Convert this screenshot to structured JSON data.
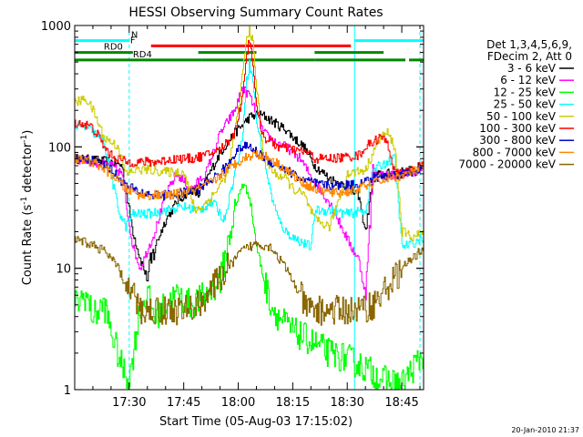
{
  "chart_data": {
    "type": "line",
    "title": "HESSI Observing Summary Count Rates",
    "xlabel": "Start Time (05-Aug-03 17:15:02)",
    "ylabel_main": "Count Rate (s",
    "ylabel_sup1": "-1",
    "ylabel_mid": " detector",
    "ylabel_sup2": "-1",
    "ylabel_end": ")",
    "yscale": "log",
    "ylim": [
      1,
      1000
    ],
    "xlim_minutes": [
      0,
      96
    ],
    "y_ticks": [
      "1",
      "10",
      "100",
      "1000"
    ],
    "x_ticks": [
      "17:30",
      "17:45",
      "18:00",
      "18:15",
      "18:30",
      "18:45"
    ],
    "legend_header": [
      "Det 1,3,4,5,6,9,",
      "FDecim 2, Att 0"
    ],
    "series": [
      {
        "name": "3 - 6 keV",
        "color": "#000000",
        "x": [
          0,
          5,
          10,
          13,
          14,
          16,
          18,
          20,
          22,
          25,
          28,
          32,
          34,
          37,
          40,
          44,
          46,
          48,
          50,
          52,
          54,
          56,
          58,
          60,
          63,
          66,
          70,
          73,
          75,
          78,
          80,
          82,
          86,
          90,
          93,
          96
        ],
        "y": [
          80,
          78,
          75,
          70,
          45,
          20,
          12,
          8,
          15,
          25,
          35,
          45,
          40,
          60,
          90,
          130,
          150,
          175,
          185,
          180,
          165,
          150,
          140,
          120,
          100,
          70,
          55,
          50,
          45,
          40,
          20,
          58,
          60,
          62,
          65,
          70
        ]
      },
      {
        "name": "6 - 12 keV",
        "color": "#ff00ff",
        "x": [
          0,
          5,
          10,
          13,
          14,
          16,
          18,
          22,
          25,
          28,
          32,
          36,
          40,
          44,
          46,
          48,
          50,
          52,
          55,
          58,
          62,
          66,
          70,
          74,
          76,
          78,
          80,
          82,
          86,
          90,
          93,
          96
        ],
        "y": [
          80,
          75,
          70,
          60,
          35,
          15,
          10,
          20,
          40,
          60,
          45,
          60,
          130,
          200,
          300,
          270,
          180,
          130,
          110,
          100,
          80,
          50,
          35,
          20,
          15,
          12,
          6,
          60,
          58,
          60,
          62,
          68
        ]
      },
      {
        "name": "12 - 25 keV",
        "color": "#00ff00",
        "x": [
          0,
          3,
          5,
          8,
          10,
          13,
          15,
          18,
          20,
          22,
          25,
          28,
          32,
          36,
          40,
          44,
          46,
          48,
          50,
          52,
          54,
          56,
          60,
          65,
          70,
          75,
          80,
          85,
          90,
          93,
          96
        ],
        "y": [
          5,
          6,
          4,
          5,
          3,
          1.5,
          1.2,
          5,
          6,
          4,
          5,
          6,
          5,
          6,
          8,
          30,
          50,
          40,
          15,
          8,
          5,
          4,
          3,
          2.5,
          2,
          1.8,
          1.5,
          1.2,
          1.1,
          1.5,
          2
        ]
      },
      {
        "name": "25 - 50 keV",
        "color": "#00ffff",
        "x": [
          0,
          4,
          8,
          12,
          14,
          16,
          20,
          25,
          30,
          34,
          38,
          41,
          43,
          46,
          47,
          48,
          49,
          50,
          52,
          54,
          56,
          58,
          60,
          63,
          65,
          66,
          70,
          75,
          80,
          82,
          86,
          88,
          90,
          93,
          96
        ],
        "y": [
          150,
          140,
          110,
          30,
          22,
          28,
          28,
          30,
          32,
          30,
          35,
          25,
          45,
          110,
          320,
          480,
          350,
          160,
          80,
          40,
          25,
          20,
          18,
          16,
          15,
          30,
          30,
          28,
          30,
          65,
          75,
          80,
          15,
          16,
          18
        ]
      },
      {
        "name": "50 - 100 keV",
        "color": "#cccc00",
        "x": [
          0,
          3,
          5,
          8,
          12,
          14,
          17,
          20,
          25,
          30,
          33,
          35,
          38,
          42,
          45,
          47,
          48,
          49,
          50,
          52,
          55,
          58,
          60,
          63,
          66,
          70,
          75,
          80,
          82,
          84,
          86,
          88,
          90,
          93,
          96
        ],
        "y": [
          230,
          250,
          200,
          120,
          100,
          60,
          65,
          65,
          62,
          62,
          30,
          32,
          40,
          60,
          200,
          700,
          950,
          700,
          300,
          80,
          60,
          55,
          45,
          40,
          25,
          22,
          60,
          65,
          90,
          120,
          130,
          100,
          20,
          18,
          20
        ]
      },
      {
        "name": "100 - 300 keV",
        "color": "#ff0000",
        "x": [
          0,
          4,
          6,
          8,
          10,
          12,
          14,
          18,
          22,
          28,
          32,
          36,
          40,
          44,
          46,
          47,
          48,
          49,
          50,
          52,
          56,
          60,
          64,
          66,
          70,
          74,
          78,
          80,
          82,
          84,
          86,
          88,
          90,
          93,
          96
        ],
        "y": [
          160,
          150,
          130,
          100,
          85,
          80,
          75,
          75,
          75,
          80,
          80,
          85,
          95,
          130,
          250,
          500,
          780,
          500,
          200,
          120,
          100,
          95,
          90,
          80,
          80,
          82,
          85,
          100,
          110,
          120,
          110,
          60,
          60,
          65,
          70
        ]
      },
      {
        "name": "300 - 800 keV",
        "color": "#0000cc",
        "x": [
          0,
          5,
          10,
          14,
          18,
          22,
          26,
          30,
          34,
          38,
          42,
          44,
          46,
          48,
          50,
          54,
          58,
          62,
          66,
          70,
          74,
          78,
          82,
          86,
          90,
          93,
          96
        ],
        "y": [
          80,
          78,
          65,
          48,
          42,
          40,
          40,
          42,
          45,
          55,
          70,
          90,
          100,
          100,
          90,
          75,
          65,
          55,
          50,
          48,
          48,
          50,
          55,
          58,
          60,
          62,
          68
        ]
      },
      {
        "name": "800 - 7000 keV",
        "color": "#ff8800",
        "x": [
          0,
          5,
          10,
          14,
          18,
          22,
          26,
          30,
          34,
          38,
          42,
          46,
          50,
          54,
          58,
          62,
          66,
          70,
          74,
          78,
          82,
          86,
          90,
          93,
          96
        ],
        "y": [
          80,
          75,
          60,
          45,
          40,
          40,
          40,
          42,
          45,
          52,
          65,
          80,
          88,
          80,
          65,
          52,
          45,
          42,
          42,
          45,
          50,
          55,
          58,
          62,
          68
        ]
      },
      {
        "name": "7000 - 20000 keV",
        "color": "#886600",
        "x": [
          0,
          4,
          8,
          12,
          14,
          16,
          18,
          22,
          26,
          30,
          34,
          38,
          42,
          46,
          50,
          54,
          58,
          62,
          64,
          66,
          70,
          74,
          78,
          82,
          86,
          90,
          93,
          96
        ],
        "y": [
          17,
          16,
          14,
          10,
          7,
          6,
          4.5,
          4.5,
          4.5,
          4.5,
          5,
          7,
          10,
          14,
          16,
          15,
          10,
          6,
          4.5,
          4.5,
          4.5,
          4.5,
          4.5,
          5,
          7,
          10,
          12,
          15
        ]
      }
    ],
    "flags": [
      {
        "name": "N",
        "color": "#00ffff",
        "level": 750,
        "segments": [
          [
            0,
            15
          ],
          [
            77,
            96
          ]
        ]
      },
      {
        "name": "F",
        "color": "#ff0000",
        "level": 680,
        "segments": [
          [
            21,
            76
          ]
        ]
      },
      {
        "name": "RD0",
        "color": "#008800",
        "level": 600,
        "segments": [
          [
            0,
            16
          ],
          [
            34,
            50
          ],
          [
            66,
            85
          ]
        ]
      },
      {
        "name": "RD4",
        "color": "#008800",
        "level": 520,
        "segments": [
          [
            0,
            35
          ],
          [
            35,
            66
          ],
          [
            66,
            91
          ],
          [
            92,
            96
          ]
        ]
      }
    ],
    "vlines": [
      {
        "color": "#00ffff",
        "x": [
          15,
          77
        ]
      },
      {
        "color": "#00ffff",
        "x": [
          95
        ]
      }
    ],
    "legend_placement": "right",
    "grid": false
  },
  "footer_stamp": "20-Jan-2010 21:37"
}
